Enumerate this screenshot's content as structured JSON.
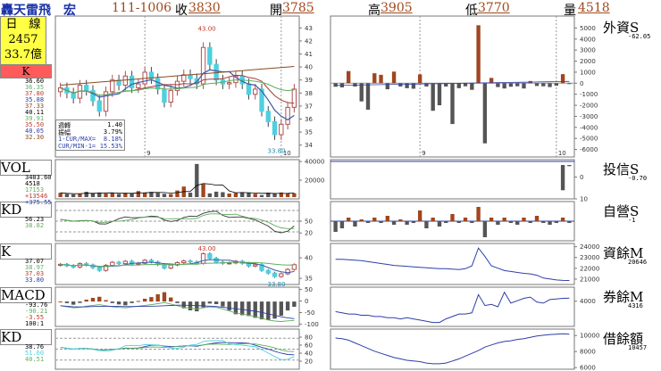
{
  "header": {
    "stock_name": "轟天雷飛　宏",
    "date": "111-1006",
    "close_label": "收",
    "close_value": "3830",
    "open_label": "開",
    "open_value": "3785",
    "high_label": "高",
    "high_value": "3905",
    "low_label": "低",
    "low_value": "3770",
    "volume_label": "量",
    "volume_value": "4518"
  },
  "info": {
    "period": "日　線",
    "code": "2457",
    "amount": "33.7億",
    "k_tag": "K"
  },
  "left_labels": [
    "VOL",
    "KD",
    "K",
    "MACD",
    "KD"
  ],
  "right_labels": [
    "外資S",
    "投信S",
    "自營S",
    "資餘M",
    "券餘M",
    "借餘額"
  ],
  "colors": {
    "up": "#a0461e",
    "down": "#555555",
    "k_line": "#3b5ba8",
    "ma_red": "#a83b3b"
  },
  "main_panel": {
    "y_ticks": [
      "43",
      "42",
      "41",
      "40",
      "39",
      "38",
      "37",
      "36",
      "35",
      "34"
    ],
    "high_mark": "43.00",
    "low_mark": "33.80",
    "legend_values": [
      "36.60",
      "36.35",
      "37.80",
      "35.88",
      "37.33",
      "40.11",
      "39.91",
      "35.50",
      "40.05",
      "32.30"
    ],
    "x_ticks": [
      "9",
      "10"
    ],
    "stats": [
      {
        "label": "週轉",
        "value": "1.40"
      },
      {
        "label": "振幅",
        "value": "3.79%"
      },
      {
        "label": "1-CUR/MAX=",
        "value": "8.18%"
      },
      {
        "label": "CUR/MIN-1=",
        "value": "15.53%"
      }
    ]
  },
  "vol_panel": {
    "y_ticks": [
      "40000",
      "20000"
    ],
    "legend_values": [
      "3403.60",
      "4518",
      "17153",
      "+13546",
      "+375.55"
    ]
  },
  "kd1_panel": {
    "y_ticks": [
      "50",
      "20"
    ],
    "legend_values": [
      "56.23",
      "38.82"
    ]
  },
  "k2_panel": {
    "y_ticks": [
      "40",
      "35"
    ],
    "high_mark": "43.00",
    "low_mark": "33.80",
    "legend_values": [
      "37.07",
      "38.97",
      "37.03",
      "33.80"
    ]
  },
  "macd_panel": {
    "y_ticks": [
      "50",
      "0",
      "-50",
      "-100"
    ],
    "legend_values": [
      "-93.76",
      "-90.21",
      "-3.55",
      "100:1"
    ]
  },
  "kd2_panel": {
    "y_ticks": [
      "80",
      "60",
      "40",
      "20"
    ],
    "legend_values": [
      "38.76",
      "51.60",
      "40.51"
    ]
  },
  "foreign_panel": {
    "y_ticks": [
      "5000",
      "4000",
      "3000",
      "2000",
      "1000",
      "0",
      "-1000",
      "-2000",
      "-3000",
      "-4000",
      "-5000",
      "-6000"
    ],
    "x_ticks": [
      "9",
      "10"
    ],
    "readout": "-62.05"
  },
  "trust_panel": {
    "y_ticks": [
      "0",
      "10"
    ],
    "readout": "-0.70"
  },
  "dealer_panel": {
    "readout": "-1"
  },
  "margin_panel": {
    "y_ticks": [
      "24000",
      "23000",
      "22000",
      "21000"
    ],
    "readout": "20646"
  },
  "short_panel": {
    "y_ticks": [
      "4000"
    ],
    "readout": "4316"
  },
  "borrow_panel": {
    "y_ticks": [
      "10000",
      "8000",
      "6000"
    ],
    "readout": "10457"
  },
  "chart_data": {
    "type": "bar",
    "title": "",
    "series": [
      {
        "name": "外資",
        "values": [
          -320,
          -380,
          1100,
          -300,
          -1650,
          -2400,
          900,
          760,
          -550,
          1050,
          -300,
          -450,
          -500,
          800,
          -300,
          -2500,
          -2000,
          -300,
          -3700,
          -450,
          -280,
          -600,
          5250,
          -5450,
          480,
          -350,
          -480,
          -320,
          -280,
          -480,
          200,
          -250,
          -280,
          -350,
          -230,
          820,
          -62
        ]
      },
      {
        "name": "投信",
        "values": [
          0,
          0,
          0,
          0,
          0,
          0,
          0,
          0,
          0,
          0,
          0,
          0,
          0,
          0,
          0,
          0,
          0,
          0,
          0,
          0,
          0,
          0,
          0,
          0,
          0,
          0,
          0,
          0,
          0,
          0,
          0,
          0,
          0,
          0,
          0,
          -15,
          -0.7
        ]
      },
      {
        "name": "自營",
        "values": [
          -6,
          -4,
          2,
          -3,
          1,
          -1,
          2,
          -1,
          3,
          -2,
          1,
          -2,
          -1,
          6,
          -4,
          2,
          -3,
          -1,
          4,
          -1,
          2,
          -1,
          8,
          -9,
          2,
          -2,
          2,
          -1,
          -2,
          2,
          -1,
          3,
          -1,
          -2,
          -1,
          2,
          -1
        ]
      }
    ],
    "close": [
      38.4,
      38.0,
      37.6,
      38.6,
      38.2,
      37.4,
      36.6,
      38.1,
      39.0,
      38.6,
      39.3,
      38.4,
      38.7,
      39.6,
      39.1,
      38.3,
      37.3,
      38.2,
      38.9,
      39.4,
      39.1,
      38.7,
      41.5,
      40.2,
      39.0,
      38.7,
      38.8,
      39.3,
      38.7,
      37.9,
      38.3,
      36.6,
      35.8,
      34.8,
      35.6,
      36.9,
      38.3
    ],
    "volume": [
      5000,
      3800,
      3200,
      4200,
      6200,
      4800,
      5400,
      4100,
      4600,
      3700,
      4900,
      4500,
      7100,
      4800,
      6100,
      5000,
      3900,
      3600,
      7800,
      12400,
      5200,
      39000,
      15400,
      4400,
      6400,
      5800,
      4200,
      4900,
      5600,
      5300,
      4000,
      2400,
      5200,
      4700,
      5400,
      4300,
      4518
    ],
    "macd": [
      -20,
      -25,
      -30,
      -28,
      -22,
      -18,
      -15,
      -20,
      -25,
      -28,
      -30,
      -26,
      -22,
      -18,
      -15,
      -10,
      -5,
      -12,
      -20,
      -28,
      -32,
      -35,
      -30,
      -25,
      -28,
      -35,
      -45,
      -55,
      -60,
      -65,
      -72,
      -80,
      -88,
      -93,
      -95,
      -92,
      -90
    ],
    "margin": [
      22900,
      22900,
      22850,
      22800,
      22750,
      22650,
      22550,
      22450,
      22350,
      22250,
      22200,
      22150,
      22100,
      22050,
      22000,
      21950,
      21900,
      21900,
      21850,
      21800,
      21900,
      22200,
      24100,
      23200,
      22200,
      21950,
      21700,
      21600,
      21500,
      21400,
      21350,
      21200,
      20900,
      20800,
      20700,
      20650,
      20646
    ],
    "short_balance": [
      3200,
      3100,
      3000,
      3000,
      2900,
      2900,
      2800,
      2800,
      2700,
      2700,
      2600,
      2700,
      2600,
      2500,
      2400,
      2300,
      2300,
      2600,
      2800,
      3000,
      3000,
      3100,
      4600,
      3700,
      3800,
      3600,
      4800,
      3900,
      4100,
      4300,
      4400,
      4000,
      3900,
      4200,
      4250,
      4300,
      4316
    ],
    "borrow": [
      9900,
      9800,
      9600,
      9200,
      8800,
      8400,
      8000,
      7700,
      7400,
      7100,
      6900,
      6700,
      6600,
      6500,
      6300,
      6200,
      6200,
      6300,
      6600,
      6900,
      7300,
      7700,
      8100,
      8600,
      8900,
      9200,
      9400,
      9500,
      9700,
      9800,
      10000,
      10200,
      10300,
      10400,
      10450,
      10500,
      10457
    ]
  }
}
